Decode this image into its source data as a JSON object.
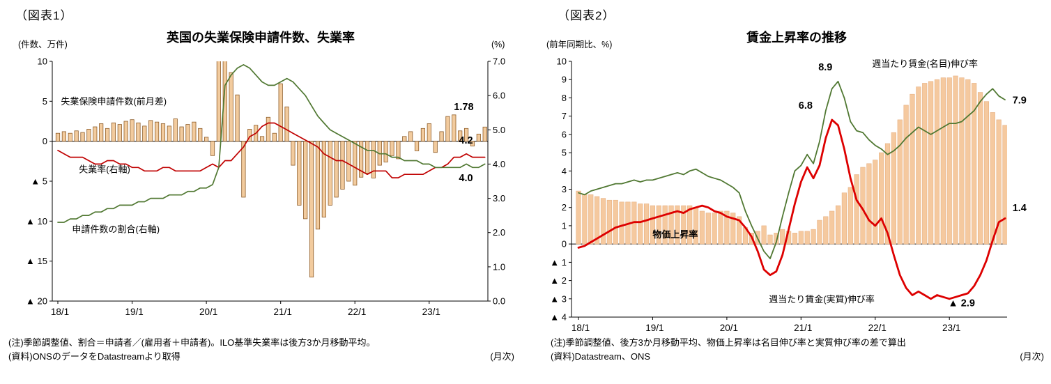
{
  "figure1": {
    "label": "（図表1）",
    "title": "英国の失業保険申請件数、失業率",
    "notes": [
      "(注)季節調整値、割合＝申請者／(雇用者＋申請者)。ILO基準失業率は後方3か月移動平均。",
      "(資料)ONSのデータをDatastreamより取得"
    ],
    "freq_note": "(月次)"
  },
  "figure2": {
    "label": "（図表2）",
    "title": "賃金上昇率の推移",
    "notes": [
      "(注)季節調整値、後方3か月移動平均、物価上昇率は名目伸び率と実質伸び率の差で算出",
      "(資料)Datastream、ONS"
    ],
    "freq_note": "(月次)"
  },
  "chart_data": [
    {
      "type": "bar+line",
      "title": "英国の失業保険申請件数、失業率",
      "x_monthly_range": "2018-01 to 2023-10",
      "x_tick_labels": [
        "18/1",
        "19/1",
        "20/1",
        "21/1",
        "22/1",
        "23/1"
      ],
      "x_tick_positions": [
        0,
        12,
        24,
        36,
        48,
        60
      ],
      "axes": {
        "left": {
          "unit": "(件数、万件)",
          "min": -20,
          "max": 10,
          "ticks": [
            10,
            5,
            0,
            -5,
            -10,
            -15,
            -20
          ],
          "tick_labels": [
            "10",
            "5",
            "0",
            "▲ 5",
            "▲ 10",
            "▲ 15",
            "▲ 20"
          ]
        },
        "right": {
          "unit": "(%)",
          "min": 0,
          "max": 7,
          "ticks": [
            7,
            6,
            5,
            4,
            3,
            2,
            1,
            0
          ],
          "tick_labels": [
            "7.0",
            "6.0",
            "5.0",
            "4.0",
            "3.0",
            "2.0",
            "1.0",
            "0.0"
          ]
        }
      },
      "series": [
        {
          "name": "失業保険申請件数(前月差)",
          "kind": "bar",
          "axis": "left",
          "fill": "#f2cb9e",
          "stroke": "#8e5c28",
          "values": [
            1.0,
            1.2,
            1.0,
            1.3,
            1.1,
            1.5,
            1.8,
            2.2,
            1.6,
            2.3,
            2.1,
            2.5,
            2.7,
            2.3,
            1.9,
            2.6,
            2.4,
            2.2,
            1.9,
            2.8,
            1.8,
            2.1,
            2.4,
            1.6,
            0.5,
            -1.8,
            12.0,
            30.0,
            8.6,
            5.8,
            -7.0,
            1.5,
            2.0,
            0.6,
            3.0,
            1.0,
            7.2,
            4.3,
            -3.0,
            -8.0,
            -9.7,
            -17.0,
            -11.0,
            -9.5,
            -8.0,
            -7.0,
            -6.0,
            -5.0,
            -5.5,
            -4.5,
            -4.0,
            -4.6,
            -3.0,
            -2.6,
            -1.8,
            -2.2,
            0.6,
            1.2,
            -1.2,
            1.6,
            2.2,
            -1.4,
            1.2,
            3.1,
            3.3,
            1.3,
            1.6,
            -0.6,
            0.9,
            1.78
          ]
        },
        {
          "name": "失業率(右軸)",
          "kind": "line",
          "axis": "right",
          "color": "#c00000",
          "width": 1.7,
          "values": [
            4.4,
            4.3,
            4.2,
            4.2,
            4.2,
            4.1,
            4.0,
            4.0,
            4.1,
            4.1,
            4.0,
            4.0,
            3.9,
            3.9,
            3.8,
            3.8,
            3.8,
            3.9,
            3.9,
            3.8,
            3.8,
            3.8,
            3.8,
            3.8,
            3.9,
            4.0,
            3.9,
            4.1,
            4.1,
            4.3,
            4.5,
            4.8,
            4.9,
            5.1,
            5.2,
            5.2,
            5.1,
            5.0,
            4.9,
            4.8,
            4.7,
            4.6,
            4.5,
            4.3,
            4.2,
            4.1,
            4.1,
            4.0,
            3.9,
            3.8,
            3.7,
            3.8,
            3.8,
            3.8,
            3.6,
            3.6,
            3.7,
            3.7,
            3.7,
            3.7,
            3.8,
            3.9,
            3.9,
            4.0,
            4.2,
            4.2,
            4.3,
            4.2,
            4.2,
            4.2
          ]
        },
        {
          "name": "申請件数の割合(右軸)",
          "kind": "line",
          "axis": "right",
          "color": "#507832",
          "width": 1.7,
          "values": [
            2.3,
            2.3,
            2.4,
            2.4,
            2.5,
            2.5,
            2.6,
            2.6,
            2.7,
            2.7,
            2.8,
            2.8,
            2.8,
            2.9,
            2.9,
            3.0,
            3.0,
            3.0,
            3.1,
            3.1,
            3.1,
            3.2,
            3.2,
            3.3,
            3.3,
            3.4,
            3.9,
            6.3,
            6.6,
            6.8,
            6.9,
            6.8,
            6.6,
            6.4,
            6.3,
            6.3,
            6.4,
            6.5,
            6.4,
            6.2,
            6.0,
            5.7,
            5.4,
            5.2,
            5.0,
            4.9,
            4.8,
            4.7,
            4.6,
            4.5,
            4.4,
            4.4,
            4.3,
            4.3,
            4.2,
            4.2,
            4.1,
            4.1,
            4.1,
            4.0,
            4.0,
            3.9,
            3.9,
            3.9,
            3.9,
            3.9,
            4.0,
            3.9,
            3.9,
            4.0
          ]
        }
      ],
      "annotations": [
        {
          "text": "失業保険申請件数(前月差)",
          "m": 0.5,
          "v": 4.6,
          "axis": "left"
        },
        {
          "text": "失業率(右軸)",
          "m": 3.4,
          "v": 3.75,
          "axis": "right"
        },
        {
          "text": "申請件数の割合(右軸)",
          "m": 2.3,
          "v": 2.0,
          "axis": "right"
        },
        {
          "text": "1.78",
          "m": 64.0,
          "v": 3.9,
          "axis": "left",
          "bold": true,
          "size": 14.5
        },
        {
          "text": "4.2",
          "m": 64.8,
          "v": 4.6,
          "axis": "right",
          "bold": true,
          "size": 14.5
        },
        {
          "text": "4.0",
          "m": 64.8,
          "v": 3.5,
          "axis": "right",
          "bold": true,
          "size": 14.5
        }
      ]
    },
    {
      "type": "bar+line",
      "title": "賃金上昇率の推移",
      "x_monthly_range": "2018-01 to 2023-10",
      "x_tick_labels": [
        "18/1",
        "19/1",
        "20/1",
        "21/1",
        "22/1",
        "23/1"
      ],
      "x_tick_positions": [
        0,
        12,
        24,
        36,
        48,
        60
      ],
      "axes": {
        "left": {
          "unit": "(前年同期比、%)",
          "min": -4,
          "max": 10,
          "ticks": [
            10,
            9,
            8,
            7,
            6,
            5,
            4,
            3,
            2,
            1,
            0,
            -1,
            -2,
            -3,
            -4
          ],
          "tick_labels": [
            "10",
            "9",
            "8",
            "7",
            "6",
            "5",
            "4",
            "3",
            "2",
            "1",
            "0",
            "▲ 1",
            "▲ 2",
            "▲ 3",
            "▲ 4"
          ]
        }
      },
      "series": [
        {
          "name": "物価上昇率",
          "kind": "bar",
          "axis": "left",
          "fill": "#f5c99f",
          "stroke": "#e7b183",
          "values": [
            2.9,
            2.7,
            2.7,
            2.6,
            2.5,
            2.4,
            2.4,
            2.3,
            2.3,
            2.3,
            2.2,
            2.2,
            2.1,
            2.1,
            2.1,
            2.1,
            2.1,
            2.1,
            2.1,
            2.0,
            1.8,
            1.7,
            1.7,
            1.8,
            1.8,
            1.7,
            1.5,
            0.9,
            0.6,
            0.7,
            1.0,
            0.5,
            0.6,
            0.8,
            0.7,
            0.6,
            0.7,
            0.7,
            0.8,
            1.3,
            1.5,
            1.8,
            2.1,
            2.8,
            3.1,
            3.8,
            4.2,
            4.4,
            4.6,
            5.0,
            5.5,
            6.1,
            6.8,
            7.6,
            8.2,
            8.6,
            8.8,
            8.9,
            9.0,
            9.1,
            9.1,
            9.2,
            9.1,
            9.0,
            8.8,
            8.3,
            7.8,
            7.2,
            6.8,
            6.5
          ]
        },
        {
          "name": "週当たり賃金(名目)伸び率",
          "kind": "line",
          "axis": "left",
          "color": "#507832",
          "width": 1.8,
          "values": [
            2.8,
            2.7,
            2.9,
            3.0,
            3.1,
            3.2,
            3.3,
            3.3,
            3.4,
            3.5,
            3.4,
            3.5,
            3.5,
            3.6,
            3.7,
            3.8,
            3.9,
            3.8,
            4.0,
            4.1,
            3.9,
            3.7,
            3.6,
            3.5,
            3.3,
            3.1,
            2.8,
            1.8,
            1.0,
            0.3,
            -0.4,
            -0.8,
            0.1,
            1.5,
            2.8,
            4.0,
            4.3,
            4.9,
            4.4,
            5.6,
            7.3,
            8.5,
            8.9,
            8.0,
            6.7,
            6.2,
            6.1,
            5.7,
            5.4,
            5.2,
            4.9,
            5.1,
            5.4,
            5.8,
            6.1,
            6.4,
            6.2,
            6.0,
            6.2,
            6.4,
            6.6,
            6.6,
            6.7,
            7.0,
            7.3,
            7.8,
            8.2,
            8.5,
            8.1,
            7.9
          ]
        },
        {
          "name": "週当たり賃金(実質)伸び率",
          "kind": "line",
          "axis": "left",
          "color": "#dd0000",
          "width": 2.8,
          "values": [
            -0.2,
            -0.1,
            0.1,
            0.3,
            0.5,
            0.7,
            0.9,
            1.0,
            1.1,
            1.2,
            1.2,
            1.3,
            1.4,
            1.5,
            1.6,
            1.7,
            1.8,
            1.7,
            1.9,
            2.0,
            2.1,
            2.0,
            1.8,
            1.7,
            1.5,
            1.4,
            1.3,
            0.9,
            0.4,
            -0.4,
            -1.4,
            -1.7,
            -1.5,
            -0.6,
            0.8,
            2.2,
            3.4,
            4.2,
            3.6,
            4.3,
            5.8,
            6.8,
            6.5,
            5.2,
            3.6,
            2.4,
            1.9,
            1.3,
            1.0,
            1.4,
            0.6,
            -0.6,
            -1.7,
            -2.4,
            -2.8,
            -2.6,
            -2.8,
            -3.0,
            -2.8,
            -2.9,
            -3.0,
            -2.9,
            -2.8,
            -2.7,
            -2.3,
            -1.7,
            -0.9,
            0.2,
            1.2,
            1.4
          ]
        }
      ],
      "annotations": [
        {
          "text": "週当たり賃金(名目)伸び率",
          "m": 47.5,
          "v": 9.7,
          "color": "#507832"
        },
        {
          "text": "8.9",
          "m": 38.8,
          "v": 9.5,
          "bold": true,
          "size": 14.5
        },
        {
          "text": "6.8",
          "m": 35.6,
          "v": 7.4,
          "bold": true,
          "size": 14.5
        },
        {
          "text": "物価上昇率",
          "m": 12.0,
          "v": 0.35,
          "color": "#8f3b13",
          "bold": true
        },
        {
          "text": "週当たり賃金(実質)伸び率",
          "m": 30.8,
          "v": -3.2,
          "color": "#dd0000"
        },
        {
          "text": "▲ 2.9",
          "m": 59.8,
          "v": -3.4,
          "bold": true,
          "size": 14.5
        },
        {
          "text": "7.9",
          "m": 70.2,
          "v": 7.7,
          "bold": true,
          "size": 14.5
        },
        {
          "text": "1.4",
          "m": 70.2,
          "v": 1.8,
          "bold": true,
          "size": 14.5
        }
      ]
    }
  ]
}
